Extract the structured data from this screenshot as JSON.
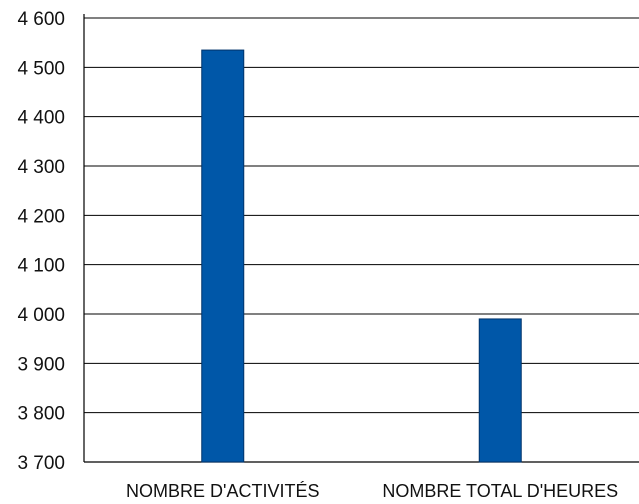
{
  "chart_data": {
    "type": "bar",
    "categories": [
      "NOMBRE D'ACTIVITÉS",
      "NOMBRE TOTAL D'HEURES"
    ],
    "values": [
      4535,
      3990
    ],
    "title": "",
    "xlabel": "",
    "ylabel": "",
    "ylim": [
      3700,
      4600
    ],
    "yticks": [
      3700,
      3800,
      3900,
      4000,
      4100,
      4200,
      4300,
      4400,
      4500,
      4600
    ],
    "ytick_labels": [
      "3 700",
      "3 800",
      "3 900",
      "4 000",
      "4 100",
      "4 200",
      "4 300",
      "4 400",
      "4 500",
      "4 600"
    ],
    "grid": true,
    "legend": "none",
    "colors": {
      "bar": "#0057a8",
      "bar_edge": "#00336b",
      "grid": "#000000"
    }
  }
}
